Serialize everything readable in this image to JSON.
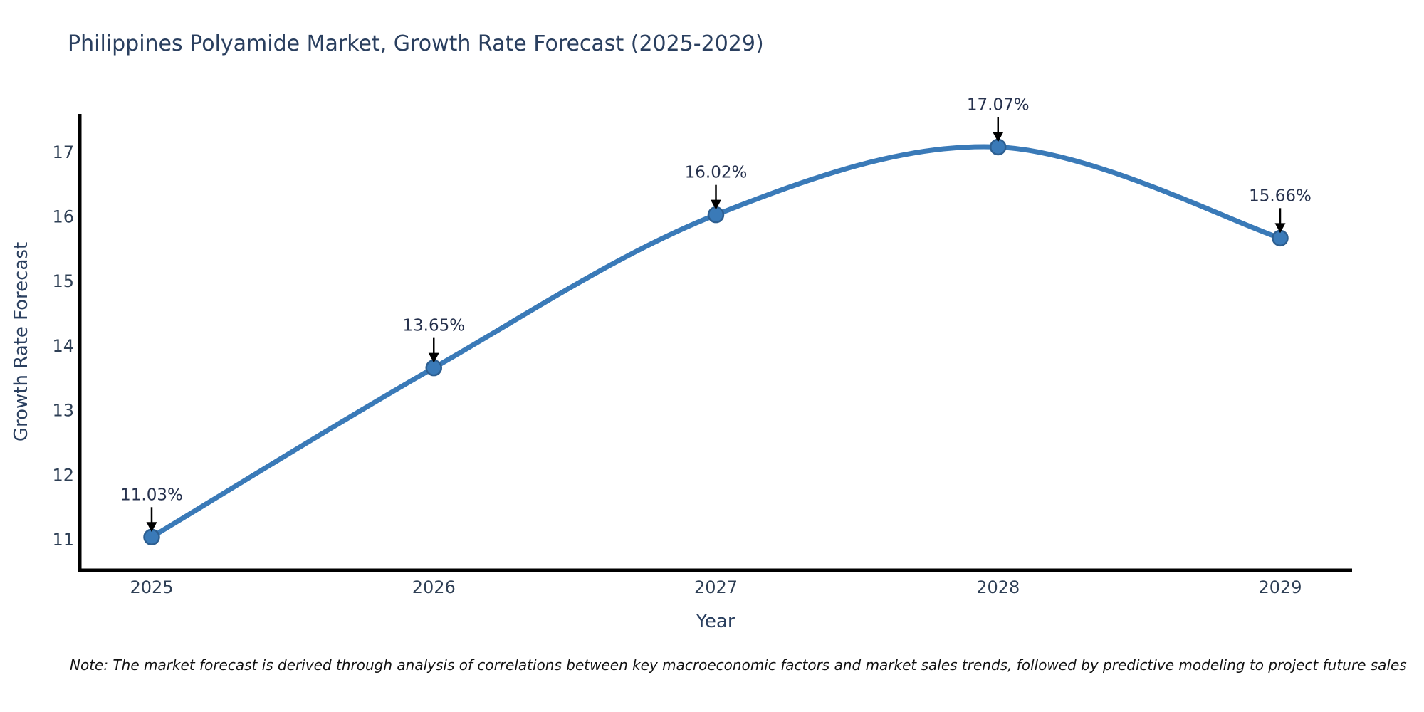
{
  "title": "Philippines Polyamide Market, Growth Rate Forecast (2025-2029)",
  "note": "Note: The market forecast is derived through analysis of correlations between key macroeconomic factors and market sales trends, followed by predictive modeling to project future sales",
  "chart_data": {
    "type": "line",
    "title": "Philippines Polyamide Market, Growth Rate Forecast (2025-2029)",
    "xlabel": "Year",
    "ylabel": "Growth Rate Forecast",
    "categories": [
      "2025",
      "2026",
      "2027",
      "2028",
      "2029"
    ],
    "series": [
      {
        "name": "Growth Rate Forecast (%)",
        "values": [
          11.03,
          13.65,
          16.02,
          17.07,
          15.66
        ]
      }
    ],
    "point_labels": [
      "11.03%",
      "13.65%",
      "16.02%",
      "17.07%",
      "15.66%"
    ],
    "y_ticks": [
      11,
      12,
      13,
      14,
      15,
      16,
      17
    ],
    "ylim": [
      10.5,
      17.6
    ],
    "grid": false,
    "legend": false,
    "smooth": true,
    "marker": "circle",
    "annotations_arrow": "down-arrow",
    "colors": {
      "line": "#3a7ab8",
      "marker_fill": "#3a7ab8",
      "marker_edge": "#2d5f91",
      "axis": "#000000",
      "title_text": "#2a3f5f",
      "tick_text": "#2e3f55",
      "axis_label_text": "#2a3f5f",
      "annotation_text": "#27324e",
      "arrow": "#000000",
      "note_text": "#111111",
      "background": "#ffffff"
    }
  }
}
